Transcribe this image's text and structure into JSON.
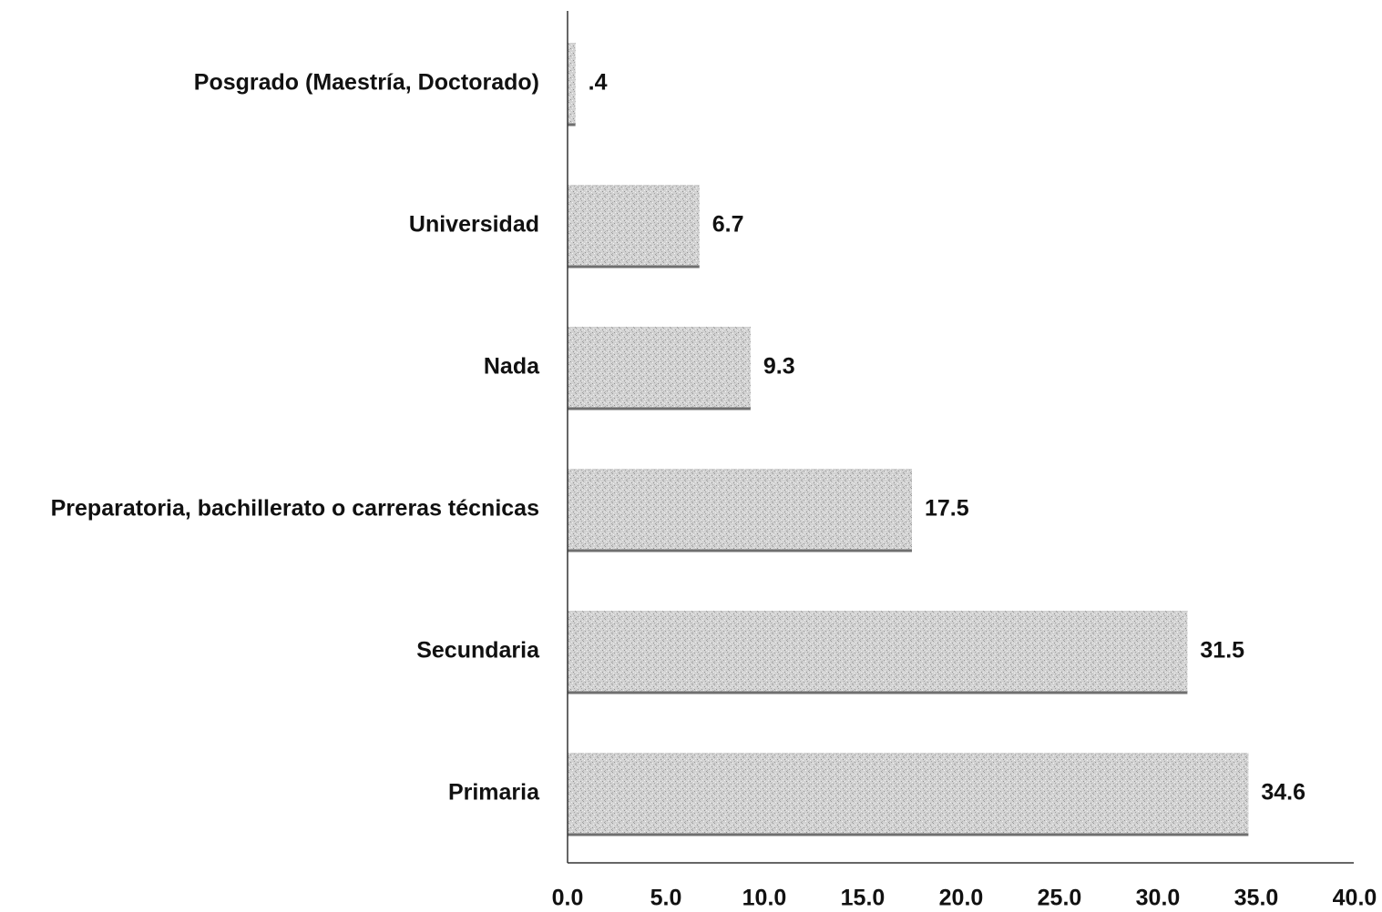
{
  "chart_data": {
    "type": "bar",
    "orientation": "horizontal",
    "categories": [
      "Posgrado (Maestría, Doctorado)",
      "Universidad",
      "Nada",
      "Preparatoria, bachillerato o carreras técnicas",
      "Secundaria",
      "Primaria"
    ],
    "values": [
      0.4,
      6.7,
      9.3,
      17.5,
      31.5,
      34.6
    ],
    "value_labels": [
      ".4",
      "6.7",
      "9.3",
      "17.5",
      "31.5",
      "34.6"
    ],
    "x_ticks": [
      "0.0",
      "5.0",
      "10.0",
      "15.0",
      "20.0",
      "25.0",
      "30.0",
      "35.0",
      "40.0"
    ],
    "xlim": [
      0,
      40
    ],
    "grid": false,
    "legend": "none",
    "bar_color": "#c9c9c9",
    "bar_base_color": "#6f6f6f"
  }
}
